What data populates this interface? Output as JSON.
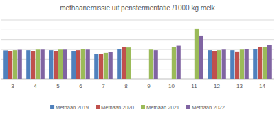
{
  "chart_data": {
    "type": "bar",
    "title": "methaanemissie uit pensfermentatie /1000 kg melk",
    "categories": [
      "3",
      "4",
      "5",
      "6",
      "7",
      "8",
      "9",
      "10",
      "11",
      "12",
      "13",
      "14"
    ],
    "series": [
      {
        "name": "Methaan 2019",
        "color": "#4f81bd",
        "values": [
          14.5,
          14.6,
          14.6,
          14.3,
          12.9,
          15.3,
          null,
          null,
          null,
          14.6,
          14.6,
          15.3
        ]
      },
      {
        "name": "Methaan 2020",
        "color": "#c0504d",
        "values": [
          14.3,
          14.3,
          14.3,
          14.6,
          12.9,
          16.3,
          null,
          null,
          null,
          14.3,
          14.0,
          16.3
        ]
      },
      {
        "name": "Methaan 2021",
        "color": "#9bbb59",
        "values": [
          14.6,
          14.9,
          14.9,
          15.2,
          13.3,
          16.0,
          14.9,
          16.2,
          25.5,
          14.6,
          14.9,
          16.3
        ]
      },
      {
        "name": "Methaan 2022",
        "color": "#8064a2",
        "values": [
          14.8,
          14.9,
          14.9,
          14.9,
          13.6,
          null,
          14.6,
          16.9,
          22.0,
          14.9,
          15.2,
          17.4
        ]
      }
    ],
    "ylim": [
      0,
      30
    ],
    "yticks": [
      0,
      5,
      10,
      15,
      20,
      25,
      30
    ],
    "grid": true,
    "tick_labels": "x",
    "legend": "bottom"
  }
}
